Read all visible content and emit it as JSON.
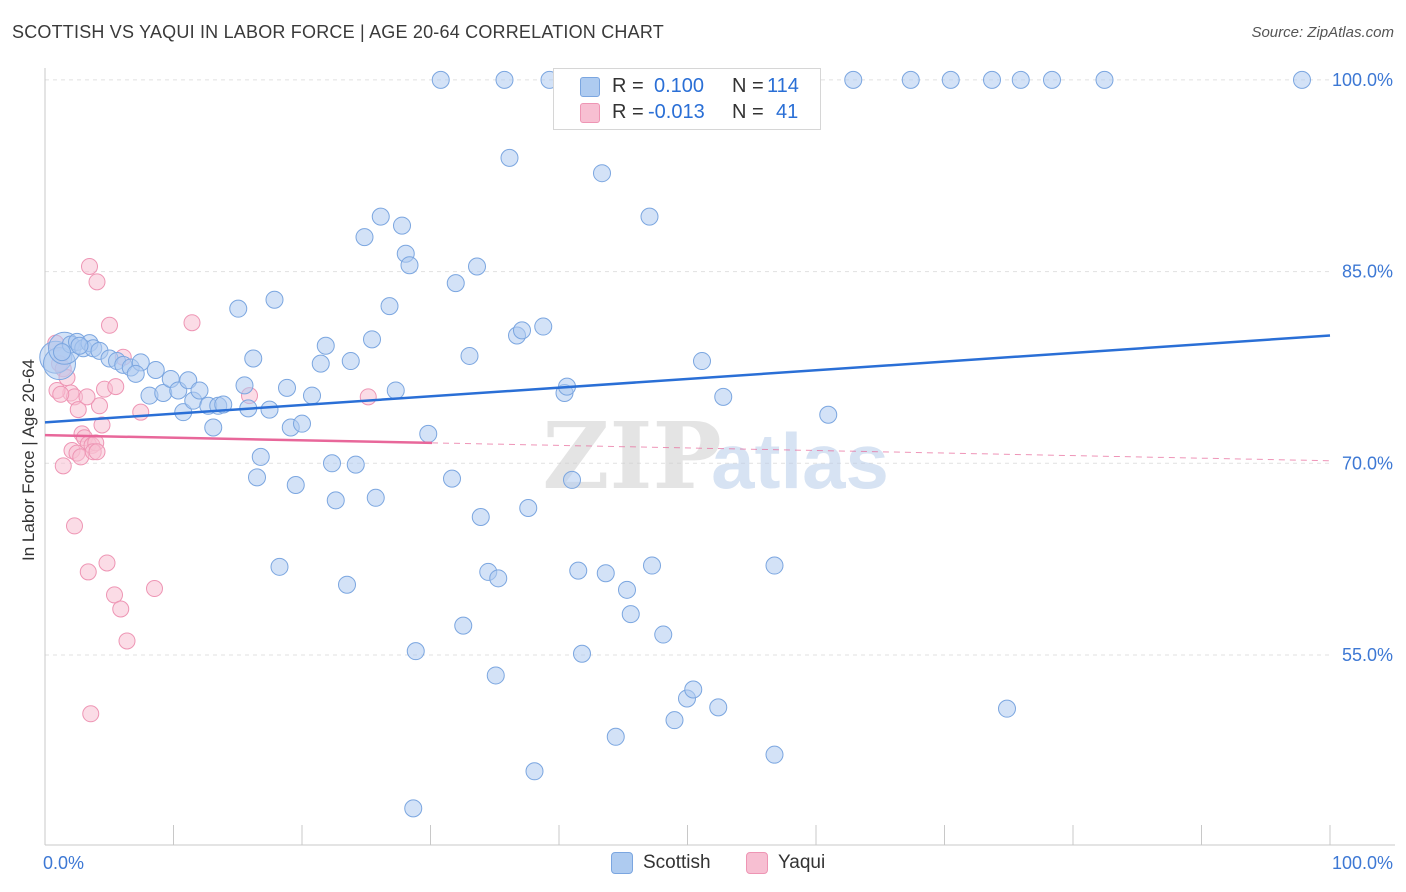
{
  "header": {
    "title": "SCOTTISH VS YAQUI IN LABOR FORCE | AGE 20-64 CORRELATION CHART",
    "source": "Source: ZipAtlas.com"
  },
  "colors": {
    "scottish_fill": "#aecbf0",
    "scottish_stroke": "#7ba6e0",
    "scottish_line": "#2a6fd6",
    "yaqui_fill": "#f7bfd2",
    "yaqui_stroke": "#ee95b4",
    "yaqui_line": "#e8679a",
    "tick_label": "#3d78d4",
    "grid": "#e1e1e1"
  },
  "legend": {
    "rows": [
      {
        "r_label": "R =",
        "r_value": "0.100",
        "n_label": "N =",
        "n_value": "114"
      },
      {
        "r_label": "R =",
        "r_value": "-0.013",
        "n_label": "N =",
        "n_value": "41"
      }
    ],
    "bottom": [
      {
        "label": "Scottish"
      },
      {
        "label": "Yaqui"
      }
    ]
  },
  "watermark": {
    "zip": "ZIP",
    "atlas": "atlas"
  },
  "chart_data": {
    "type": "scatter",
    "title": "SCOTTISH VS YAQUI IN LABOR FORCE | AGE 20-64 CORRELATION CHART",
    "xlabel": "",
    "ylabel": "In Labor Force | Age 20-64",
    "xlim": [
      0,
      100
    ],
    "ylim": [
      40,
      101.3
    ],
    "x_tick_labels": [
      "0.0%",
      "100.0%"
    ],
    "y_ticks": [
      55,
      70,
      85,
      100
    ],
    "y_tick_labels": [
      "55.0%",
      "70.0%",
      "85.0%",
      "100.0%"
    ],
    "series": [
      {
        "name": "Scottish",
        "r": 0.1,
        "n": 114,
        "trend": {
          "x": [
            0,
            100
          ],
          "y": [
            73.2,
            80.0
          ]
        },
        "points": [
          [
            0.3,
            78.3
          ],
          [
            0.6,
            77.8
          ],
          [
            1.0,
            79.0
          ],
          [
            1.5,
            79.3
          ],
          [
            2.0,
            79.5
          ],
          [
            2.5,
            79.0
          ],
          [
            3.0,
            79.4
          ],
          [
            3.3,
            79.0
          ],
          [
            3.8,
            78.8
          ],
          [
            4.6,
            78.2
          ],
          [
            5.2,
            78.0
          ],
          [
            5.7,
            77.7
          ],
          [
            6.3,
            77.5
          ],
          [
            7.1,
            77.9
          ],
          [
            6.7,
            77.0
          ],
          [
            8.3,
            77.3
          ],
          [
            7.8,
            75.3
          ],
          [
            8.9,
            75.5
          ],
          [
            9.5,
            76.6
          ],
          [
            10.1,
            75.7
          ],
          [
            10.5,
            74.0
          ],
          [
            10.9,
            76.5
          ],
          [
            11.3,
            74.9
          ],
          [
            11.8,
            75.7
          ],
          [
            12.5,
            74.5
          ],
          [
            12.9,
            72.8
          ],
          [
            13.3,
            74.5
          ],
          [
            13.7,
            74.6
          ],
          [
            15.4,
            76.1
          ],
          [
            15.7,
            74.3
          ],
          [
            16.1,
            78.2
          ],
          [
            14.9,
            82.1
          ],
          [
            17.4,
            74.2
          ],
          [
            16.7,
            70.5
          ],
          [
            16.4,
            68.9
          ],
          [
            17.8,
            82.8
          ],
          [
            18.2,
            61.9
          ],
          [
            18.8,
            75.9
          ],
          [
            19.1,
            72.8
          ],
          [
            19.5,
            68.3
          ],
          [
            20.0,
            73.1
          ],
          [
            20.8,
            75.3
          ],
          [
            21.5,
            77.8
          ],
          [
            21.9,
            79.2
          ],
          [
            22.4,
            70.0
          ],
          [
            22.7,
            67.1
          ],
          [
            23.6,
            60.5
          ],
          [
            23.9,
            78.0
          ],
          [
            24.3,
            69.9
          ],
          [
            25.6,
            79.7
          ],
          [
            25.9,
            67.3
          ],
          [
            27.0,
            82.3
          ],
          [
            27.5,
            75.7
          ],
          [
            25.0,
            87.7
          ],
          [
            26.3,
            89.3
          ],
          [
            28.0,
            88.6
          ],
          [
            28.3,
            86.4
          ],
          [
            28.6,
            85.5
          ],
          [
            29.1,
            55.3
          ],
          [
            30.1,
            72.3
          ],
          [
            31.1,
            100.0
          ],
          [
            32.0,
            68.8
          ],
          [
            32.3,
            84.1
          ],
          [
            32.9,
            57.3
          ],
          [
            33.4,
            78.4
          ],
          [
            34.0,
            85.4
          ],
          [
            34.3,
            65.8
          ],
          [
            34.9,
            61.5
          ],
          [
            35.7,
            61.0
          ],
          [
            35.5,
            53.4
          ],
          [
            36.2,
            100.0
          ],
          [
            36.6,
            93.9
          ],
          [
            37.2,
            80.0
          ],
          [
            37.6,
            80.4
          ],
          [
            38.1,
            66.5
          ],
          [
            38.6,
            45.9
          ],
          [
            39.3,
            80.7
          ],
          [
            39.8,
            100.0
          ],
          [
            41.0,
            75.5
          ],
          [
            41.2,
            76.0
          ],
          [
            41.6,
            68.7
          ],
          [
            42.1,
            61.6
          ],
          [
            42.4,
            55.1
          ],
          [
            44.0,
            92.7
          ],
          [
            44.3,
            61.4
          ],
          [
            45.1,
            48.6
          ],
          [
            46.0,
            60.1
          ],
          [
            46.3,
            58.2
          ],
          [
            47.8,
            89.3
          ],
          [
            48.0,
            62.0
          ],
          [
            48.9,
            56.6
          ],
          [
            49.8,
            49.9
          ],
          [
            50.8,
            51.6
          ],
          [
            51.3,
            52.3
          ],
          [
            52.0,
            78.0
          ],
          [
            53.3,
            50.9
          ],
          [
            53.7,
            75.2
          ],
          [
            55.2,
            100.0
          ],
          [
            57.8,
            47.2
          ],
          [
            57.8,
            62.0
          ],
          [
            59.1,
            100.0
          ],
          [
            62.1,
            73.8
          ],
          [
            64.1,
            100.0
          ],
          [
            68.7,
            100.0
          ],
          [
            71.9,
            100.0
          ],
          [
            75.2,
            100.0
          ],
          [
            76.4,
            50.8
          ],
          [
            77.5,
            100.0
          ],
          [
            80.0,
            100.0
          ],
          [
            84.2,
            100.0
          ],
          [
            100.0,
            100.0
          ],
          [
            28.9,
            43.0
          ],
          [
            0.8,
            78.7
          ],
          [
            2.2,
            79.2
          ]
        ]
      },
      {
        "name": "Yaqui",
        "r": -0.013,
        "n": 41,
        "trend": {
          "x": [
            0,
            100
          ],
          "y": [
            72.2,
            70.2
          ]
        },
        "points": [
          [
            0.3,
            79.4
          ],
          [
            0.6,
            77.8
          ],
          [
            0.9,
            77.4
          ],
          [
            1.2,
            76.7
          ],
          [
            1.5,
            75.5
          ],
          [
            1.8,
            75.2
          ],
          [
            0.4,
            75.7
          ],
          [
            0.7,
            75.4
          ],
          [
            2.1,
            74.2
          ],
          [
            2.4,
            72.3
          ],
          [
            2.6,
            72.0
          ],
          [
            2.9,
            71.5
          ],
          [
            3.2,
            71.4
          ],
          [
            3.5,
            71.6
          ],
          [
            1.6,
            71.0
          ],
          [
            2.0,
            70.8
          ],
          [
            2.3,
            70.5
          ],
          [
            0.9,
            69.8
          ],
          [
            3.3,
            70.9
          ],
          [
            3.6,
            70.9
          ],
          [
            4.0,
            73.0
          ],
          [
            3.8,
            74.5
          ],
          [
            4.2,
            75.8
          ],
          [
            2.8,
            75.2
          ],
          [
            4.6,
            80.8
          ],
          [
            5.1,
            76.0
          ],
          [
            5.7,
            78.3
          ],
          [
            7.1,
            74.0
          ],
          [
            11.2,
            81.0
          ],
          [
            15.8,
            75.3
          ],
          [
            25.3,
            75.2
          ],
          [
            3.0,
            85.4
          ],
          [
            3.6,
            84.2
          ],
          [
            1.8,
            65.1
          ],
          [
            2.9,
            61.5
          ],
          [
            4.4,
            62.2
          ],
          [
            5.0,
            59.7
          ],
          [
            5.5,
            58.6
          ],
          [
            6.0,
            56.1
          ],
          [
            8.2,
            60.2
          ],
          [
            3.1,
            50.4
          ]
        ]
      }
    ]
  }
}
